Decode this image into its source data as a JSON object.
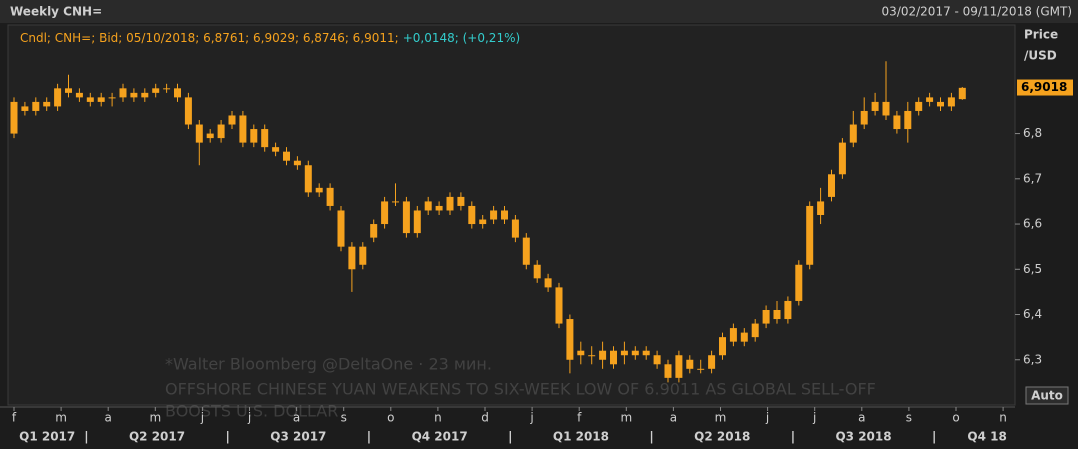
{
  "chart_data": {
    "type": "candlestick",
    "title": "Weekly CNH=",
    "date_range": "03/02/2017 - 09/11/2018 (GMT)",
    "header_text": "Cndl; CNH=; Bid; 05/10/2018; 6,8761; 6,9029; 6,8746; 6,9011;",
    "header_change": "+0,0148; (+0,21%)",
    "y_axis_label": [
      "Price",
      "/USD"
    ],
    "last_price": {
      "value": 6.9018,
      "label": "6,9018"
    },
    "auto_button": "Auto",
    "watermark": [
      "*Walter Bloomberg @DeltaOne · 23 мин.",
      "OFFSHORE CHINESE YUAN WEAKENS TO SIX-WEEK LOW OF 6.9011 AS GLOBAL SELL-OFF",
      "BOOSTS U.S. DOLLAR"
    ],
    "months": [
      "f",
      "m",
      "a",
      "m",
      "j",
      "j",
      "a",
      "s",
      "o",
      "n",
      "d",
      "j",
      "f",
      "m",
      "a",
      "m",
      "j",
      "j",
      "a",
      "s",
      "o",
      "n"
    ],
    "quarters": [
      "Q1 2017",
      "Q2 2017",
      "Q3 2017",
      "Q4 2017",
      "Q1 2018",
      "Q2 2018",
      "Q3 2018",
      "Q4 18"
    ],
    "color": "#f5a21e",
    "ylim": [
      6.2,
      7.04
    ],
    "yticks": [
      {
        "value": 6.3,
        "label": "6,3"
      },
      {
        "value": 6.4,
        "label": "6,4"
      },
      {
        "value": 6.5,
        "label": "6,5"
      },
      {
        "value": 6.6,
        "label": "6,6"
      },
      {
        "value": 6.7,
        "label": "6,7"
      },
      {
        "value": 6.8,
        "label": "6,8"
      }
    ],
    "grid": false,
    "open": [
      6.8,
      6.86,
      6.85,
      6.86,
      6.86,
      6.89,
      6.89,
      6.88,
      6.87,
      6.88,
      6.88,
      6.89,
      6.89,
      6.89,
      6.9,
      6.9,
      6.88,
      6.82,
      6.79,
      6.79,
      6.82,
      6.84,
      6.78,
      6.81,
      6.77,
      6.76,
      6.74,
      6.73,
      6.67,
      6.68,
      6.63,
      6.55,
      6.51,
      6.57,
      6.6,
      6.65,
      6.65,
      6.58,
      6.63,
      6.64,
      6.63,
      6.66,
      6.64,
      6.6,
      6.61,
      6.63,
      6.61,
      6.57,
      6.51,
      6.48,
      6.46,
      6.39,
      6.31,
      6.31,
      6.32,
      6.29,
      6.32,
      6.31,
      6.32,
      6.31,
      6.29,
      6.26,
      6.3,
      6.28,
      6.28,
      6.31,
      6.34,
      6.36,
      6.35,
      6.38,
      6.41,
      6.39,
      6.43,
      6.51,
      6.62,
      6.66,
      6.71,
      6.78,
      6.82,
      6.85,
      6.87,
      6.84,
      6.81,
      6.85,
      6.87,
      6.87,
      6.86,
      6.8761
    ],
    "high": [
      6.88,
      6.87,
      6.88,
      6.88,
      6.91,
      6.93,
      6.9,
      6.89,
      6.89,
      6.89,
      6.91,
      6.9,
      6.9,
      6.91,
      6.91,
      6.91,
      6.89,
      6.83,
      6.81,
      6.83,
      6.85,
      6.85,
      6.82,
      6.82,
      6.78,
      6.77,
      6.75,
      6.74,
      6.69,
      6.69,
      6.64,
      6.56,
      6.56,
      6.61,
      6.66,
      6.69,
      6.66,
      6.64,
      6.66,
      6.65,
      6.67,
      6.67,
      6.65,
      6.62,
      6.64,
      6.64,
      6.62,
      6.58,
      6.52,
      6.49,
      6.47,
      6.4,
      6.34,
      6.33,
      6.34,
      6.33,
      6.34,
      6.33,
      6.33,
      6.32,
      6.3,
      6.32,
      6.31,
      6.3,
      6.32,
      6.36,
      6.38,
      6.37,
      6.39,
      6.42,
      6.43,
      6.44,
      6.52,
      6.65,
      6.68,
      6.72,
      6.79,
      6.85,
      6.88,
      6.89,
      6.96,
      6.85,
      6.87,
      6.88,
      6.89,
      6.88,
      6.89,
      6.9029
    ],
    "low": [
      6.79,
      6.84,
      6.84,
      6.85,
      6.85,
      6.88,
      6.87,
      6.86,
      6.86,
      6.86,
      6.87,
      6.87,
      6.87,
      6.88,
      6.89,
      6.87,
      6.81,
      6.73,
      6.78,
      6.78,
      6.81,
      6.77,
      6.77,
      6.76,
      6.75,
      6.73,
      6.72,
      6.66,
      6.66,
      6.63,
      6.54,
      6.45,
      6.5,
      6.56,
      6.59,
      6.64,
      6.57,
      6.57,
      6.62,
      6.62,
      6.62,
      6.63,
      6.59,
      6.59,
      6.6,
      6.6,
      6.56,
      6.5,
      6.47,
      6.45,
      6.37,
      6.27,
      6.29,
      6.29,
      6.28,
      6.28,
      6.29,
      6.3,
      6.3,
      6.28,
      6.25,
      6.25,
      6.27,
      6.27,
      6.27,
      6.3,
      6.33,
      6.33,
      6.34,
      6.37,
      6.38,
      6.38,
      6.42,
      6.5,
      6.6,
      6.65,
      6.7,
      6.77,
      6.81,
      6.84,
      6.83,
      6.8,
      6.78,
      6.84,
      6.86,
      6.85,
      6.85,
      6.8746
    ],
    "close": [
      6.87,
      6.85,
      6.87,
      6.87,
      6.9,
      6.9,
      6.88,
      6.87,
      6.88,
      6.88,
      6.9,
      6.88,
      6.88,
      6.9,
      6.9,
      6.88,
      6.82,
      6.78,
      6.8,
      6.82,
      6.84,
      6.78,
      6.81,
      6.77,
      6.76,
      6.74,
      6.73,
      6.67,
      6.68,
      6.64,
      6.55,
      6.5,
      6.55,
      6.6,
      6.65,
      6.65,
      6.58,
      6.63,
      6.65,
      6.63,
      6.66,
      6.64,
      6.6,
      6.61,
      6.63,
      6.61,
      6.57,
      6.51,
      6.48,
      6.46,
      6.38,
      6.3,
      6.32,
      6.31,
      6.3,
      6.32,
      6.31,
      6.32,
      6.31,
      6.29,
      6.26,
      6.31,
      6.28,
      6.28,
      6.31,
      6.35,
      6.37,
      6.34,
      6.38,
      6.41,
      6.39,
      6.43,
      6.51,
      6.64,
      6.65,
      6.71,
      6.78,
      6.82,
      6.85,
      6.87,
      6.84,
      6.81,
      6.85,
      6.87,
      6.88,
      6.86,
      6.88,
      6.9011
    ]
  }
}
